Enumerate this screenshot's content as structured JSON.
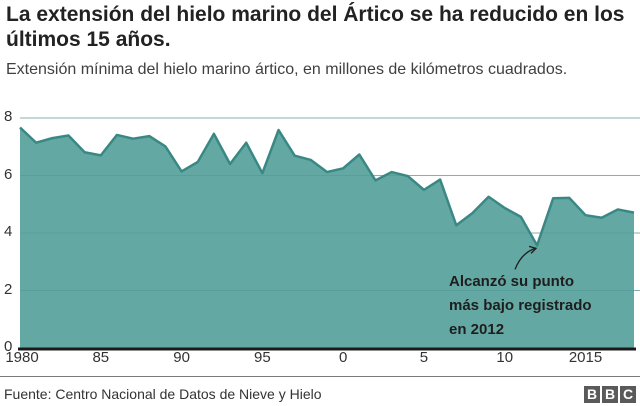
{
  "header": {
    "title": "La extensión del hielo marino del Ártico se ha reducido en los últimos 15 años.",
    "subtitle": "Extensión mínima del hielo marino ártico, en millones de kilómetros cuadrados."
  },
  "annotation": {
    "line1": "Alcanzó su punto",
    "line2": "más bajo registrado",
    "line3": "en 2012"
  },
  "footer": {
    "source": "Fuente: Centro Nacional de Datos de Nieve y Hielo",
    "logo": [
      "B",
      "B",
      "C"
    ]
  },
  "colors": {
    "fill": "#64a8a4",
    "line": "#3a8884",
    "grid": "#cccccc",
    "baseline": "#1a1a1a"
  },
  "chart_data": {
    "type": "area",
    "title": "La extensión del hielo marino del Ártico se ha reducido en los últimos 15 años.",
    "subtitle": "Extensión mínima del hielo marino ártico, en millones de kilómetros cuadrados.",
    "xlabel": "",
    "ylabel": "",
    "x": [
      1980,
      1981,
      1982,
      1983,
      1984,
      1985,
      1986,
      1987,
      1988,
      1989,
      1990,
      1991,
      1992,
      1993,
      1994,
      1995,
      1996,
      1997,
      1998,
      1999,
      2000,
      2001,
      2002,
      2003,
      2004,
      2005,
      2006,
      2007,
      2008,
      2009,
      2010,
      2011,
      2012,
      2013,
      2014,
      2015,
      2016,
      2017,
      2018
    ],
    "values": [
      7.67,
      7.14,
      7.3,
      7.39,
      6.81,
      6.7,
      7.41,
      7.28,
      7.37,
      7.01,
      6.14,
      6.47,
      7.45,
      6.4,
      7.14,
      6.08,
      7.58,
      6.69,
      6.54,
      6.12,
      6.25,
      6.73,
      5.83,
      6.12,
      5.98,
      5.5,
      5.86,
      4.27,
      4.69,
      5.26,
      4.87,
      4.56,
      3.57,
      5.21,
      5.22,
      4.62,
      4.53,
      4.82,
      4.71
    ],
    "ylim": [
      0,
      8
    ],
    "yticks": [
      0,
      2,
      4,
      6,
      8
    ],
    "xticks": [
      {
        "value": 1980,
        "label": "1980"
      },
      {
        "value": 1985,
        "label": "85"
      },
      {
        "value": 1990,
        "label": "90"
      },
      {
        "value": 1995,
        "label": "95"
      },
      {
        "value": 2000,
        "label": "0"
      },
      {
        "value": 2005,
        "label": "5"
      },
      {
        "value": 2010,
        "label": "10"
      },
      {
        "value": 2015,
        "label": "2015"
      }
    ],
    "grid": true,
    "legend": null,
    "annotations": [
      {
        "x": 2012,
        "y": 3.57,
        "text": "Alcanzó su punto más bajo registrado en 2012"
      }
    ],
    "source": "Fuente: Centro Nacional de Datos de Nieve y Hielo"
  }
}
